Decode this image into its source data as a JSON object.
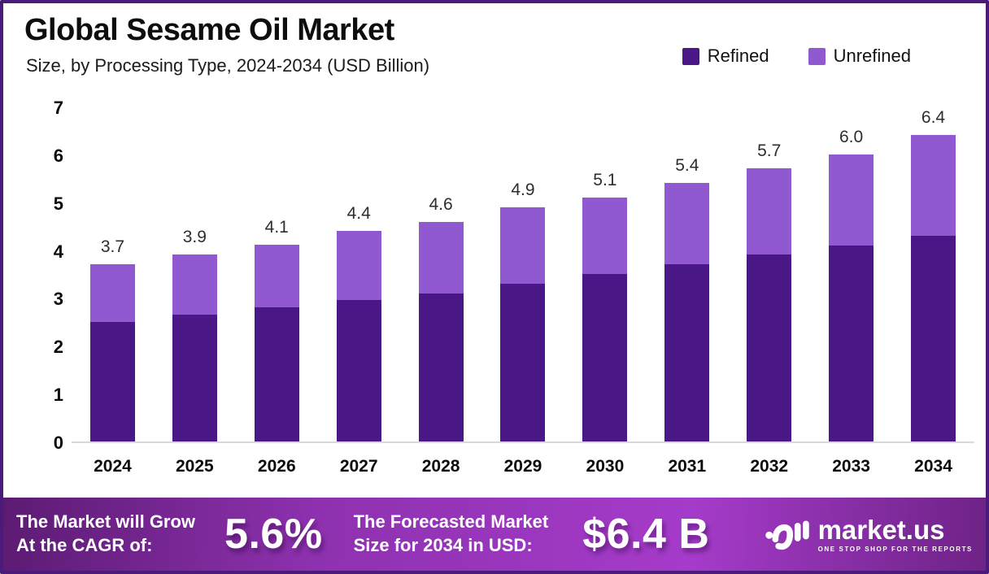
{
  "header": {
    "title": "Global Sesame Oil Market",
    "subtitle": "Size, by Processing Type, 2024-2034 (USD Billion)"
  },
  "legend": {
    "items": [
      {
        "label": "Refined",
        "color": "#4A1787"
      },
      {
        "label": "Unrefined",
        "color": "#9059D1"
      }
    ]
  },
  "chart_data": {
    "type": "bar",
    "stacked": true,
    "title": "Global Sesame Oil Market Size, by Processing Type, 2024-2034 (USD Billion)",
    "categories": [
      "2024",
      "2025",
      "2026",
      "2027",
      "2028",
      "2029",
      "2030",
      "2031",
      "2032",
      "2033",
      "2034"
    ],
    "series": [
      {
        "name": "Refined",
        "color": "#4A1787",
        "values": [
          2.5,
          2.65,
          2.8,
          2.95,
          3.1,
          3.3,
          3.5,
          3.7,
          3.9,
          4.1,
          4.3
        ]
      },
      {
        "name": "Unrefined",
        "color": "#9059D1",
        "values": [
          1.2,
          1.25,
          1.3,
          1.45,
          1.5,
          1.6,
          1.6,
          1.7,
          1.8,
          1.9,
          2.1
        ]
      }
    ],
    "total_labels": [
      "3.7",
      "3.9",
      "4.1",
      "4.4",
      "4.6",
      "4.9",
      "5.1",
      "5.4",
      "5.7",
      "6.0",
      "6.4"
    ],
    "xlabel": "",
    "ylabel": "",
    "ylim": [
      0,
      7
    ],
    "yticks": [
      0,
      1,
      2,
      3,
      4,
      5,
      6,
      7
    ],
    "grid": false,
    "legend_position": "top-right"
  },
  "footer": {
    "cagr_label": [
      "The Market will Grow",
      "At the CAGR of:"
    ],
    "cagr_value": "5.6%",
    "forecast_label": [
      "The Forecasted Market",
      "Size for 2034 in USD:"
    ],
    "forecast_value": "$6.4 B",
    "brand_name": "market.us",
    "brand_tagline": "ONE STOP SHOP FOR THE REPORTS"
  },
  "colors": {
    "refined": "#4A1787",
    "unrefined": "#9059D1",
    "frame_border": "#4B1B7C",
    "baseline": "#D9D9D9"
  }
}
